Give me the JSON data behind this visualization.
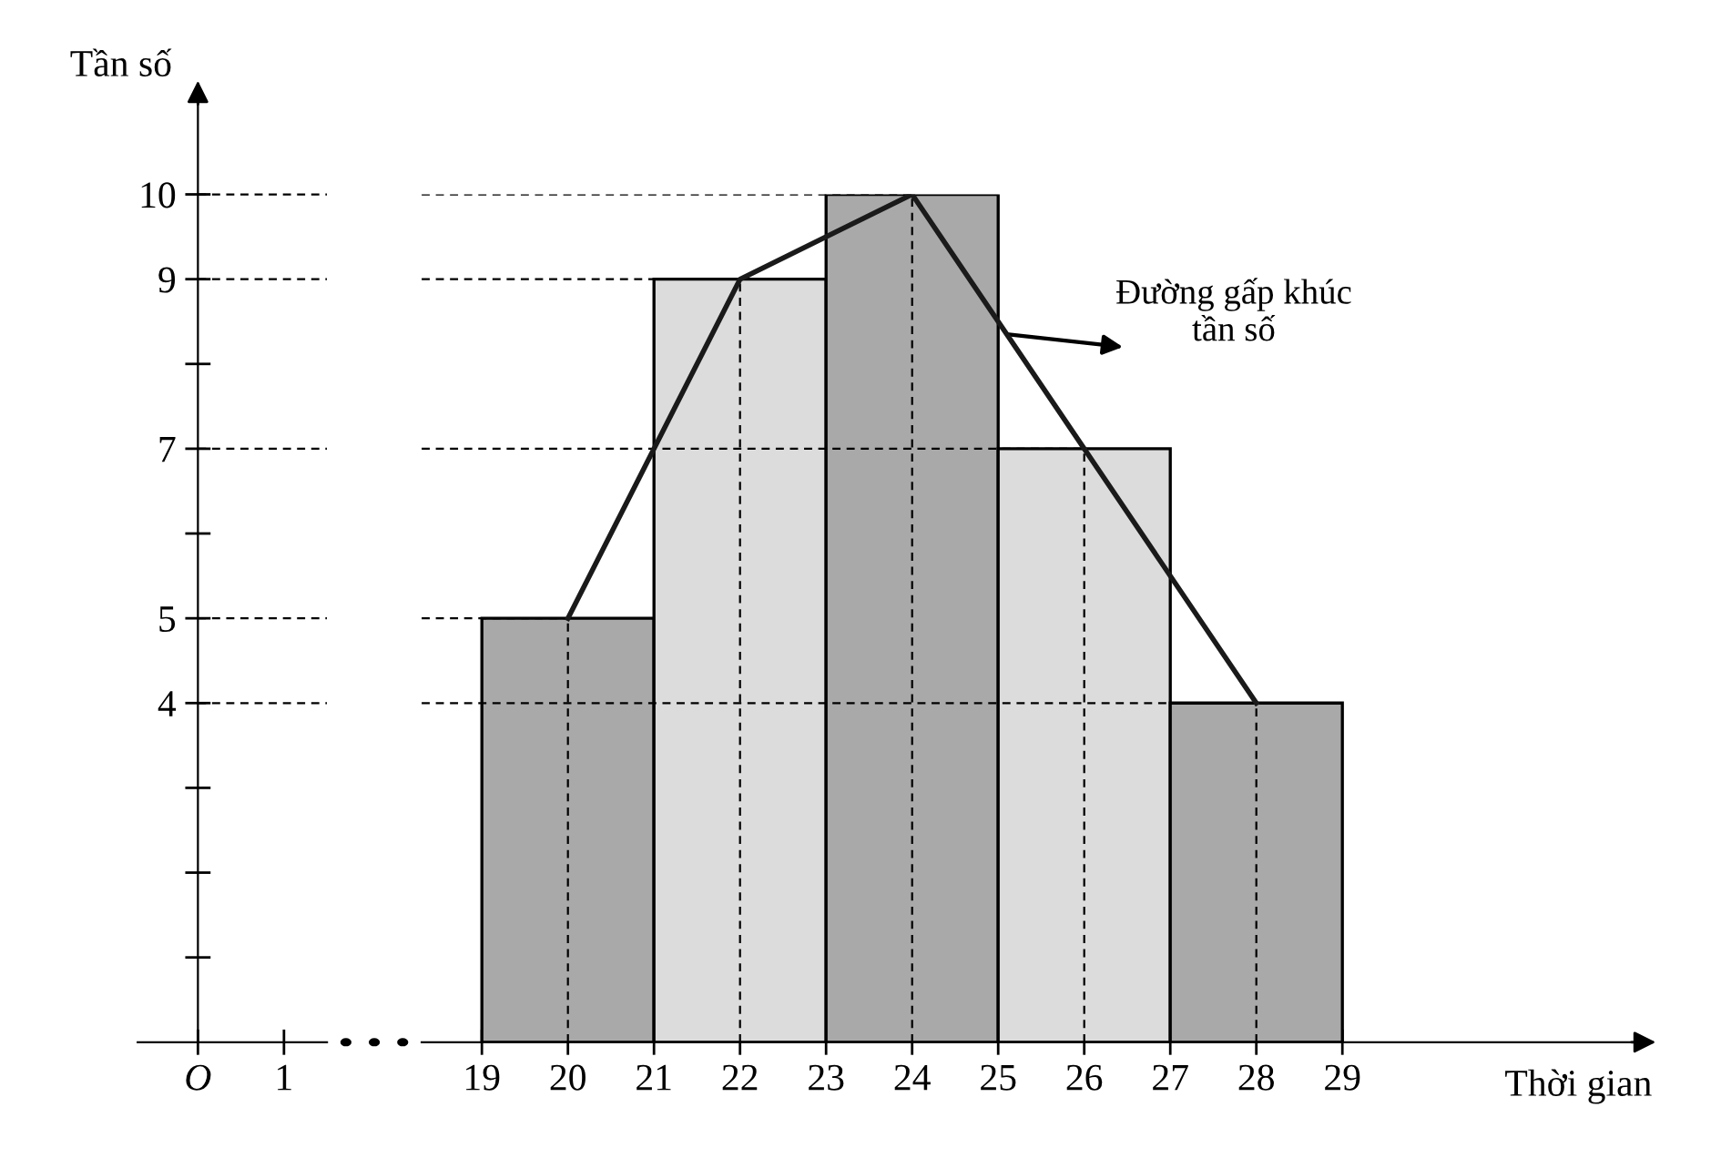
{
  "chart_data": [
    {
      "type": "line",
      "ylabel": "Tần số",
      "categories": [
        "O",
        "1"
      ],
      "ylim": [
        0,
        11.2
      ],
      "yticks": [
        {
          "value": 1,
          "label": null
        },
        {
          "value": 2,
          "label": null
        },
        {
          "value": 3,
          "label": null
        },
        4,
        5,
        {
          "value": 6,
          "label": null
        },
        7,
        {
          "value": 8,
          "label": null
        },
        9,
        10
      ],
      "ref_lines": [
        {
          "axis": "y",
          "value": 4,
          "color": "#000000",
          "line_style": "dashed"
        },
        {
          "axis": "y",
          "value": 5,
          "color": "#000000",
          "line_style": "dashed"
        },
        {
          "axis": "y",
          "value": 7,
          "color": "#000000",
          "line_style": "dashed"
        },
        {
          "axis": "y",
          "value": 9,
          "color": "#000000",
          "line_style": "dashed"
        },
        {
          "axis": "y",
          "value": 10,
          "color": "#000000",
          "line_style": "dashed"
        }
      ]
    },
    {
      "type": "histogram",
      "xlabel": "Thời gian",
      "series": [
        {
          "type": "histogram",
          "bins": [
            19,
            21,
            23,
            25,
            27,
            29
          ],
          "values": [
            5,
            9,
            10,
            7,
            4
          ],
          "colors": [
            "#a9a9a9",
            "#dcdcdc",
            "#a9a9a9",
            "#dcdcdc",
            "#a9a9a9"
          ]
        },
        {
          "type": "line",
          "x": [
            20,
            22,
            24,
            26,
            28
          ],
          "values": [
            5,
            9,
            10,
            7,
            4
          ],
          "color": "#1a1a1a"
        }
      ],
      "annotations": [
        {
          "text": "Đường gấp khúc\ntần số",
          "x": 25.1,
          "y": 8.35
        }
      ],
      "ref_lines": [
        {
          "axis": "y",
          "value": 4,
          "color": "#000000",
          "line_style": "dashed"
        },
        {
          "axis": "y",
          "value": 5,
          "color": "#000000",
          "line_style": "dashed"
        },
        {
          "axis": "y",
          "value": 7,
          "color": "#000000",
          "line_style": "dashed"
        },
        {
          "axis": "y",
          "value": 9,
          "color": "#000000",
          "line_style": "dashed"
        },
        {
          "axis": "y",
          "value": 10,
          "color": "#000000",
          "line_style": "dashed"
        },
        {
          "axis": "x",
          "value": 20,
          "color": "#000000",
          "line_style": "dashed"
        },
        {
          "axis": "x",
          "value": 22,
          "color": "#000000",
          "line_style": "dashed"
        },
        {
          "axis": "x",
          "value": 24,
          "color": "#000000",
          "line_style": "dashed"
        },
        {
          "axis": "x",
          "value": 26,
          "color": "#000000",
          "line_style": "dashed"
        },
        {
          "axis": "x",
          "value": 28,
          "color": "#000000",
          "line_style": "dashed"
        }
      ],
      "xlim": [
        18.3,
        32.6
      ],
      "ylim": [
        0,
        10
      ],
      "yticks": [
        4,
        5,
        7,
        9,
        10
      ],
      "xticks": [
        19,
        20,
        21,
        22,
        23,
        24,
        25,
        26,
        27,
        28,
        29
      ],
      "tick_labels": "x"
    }
  ]
}
